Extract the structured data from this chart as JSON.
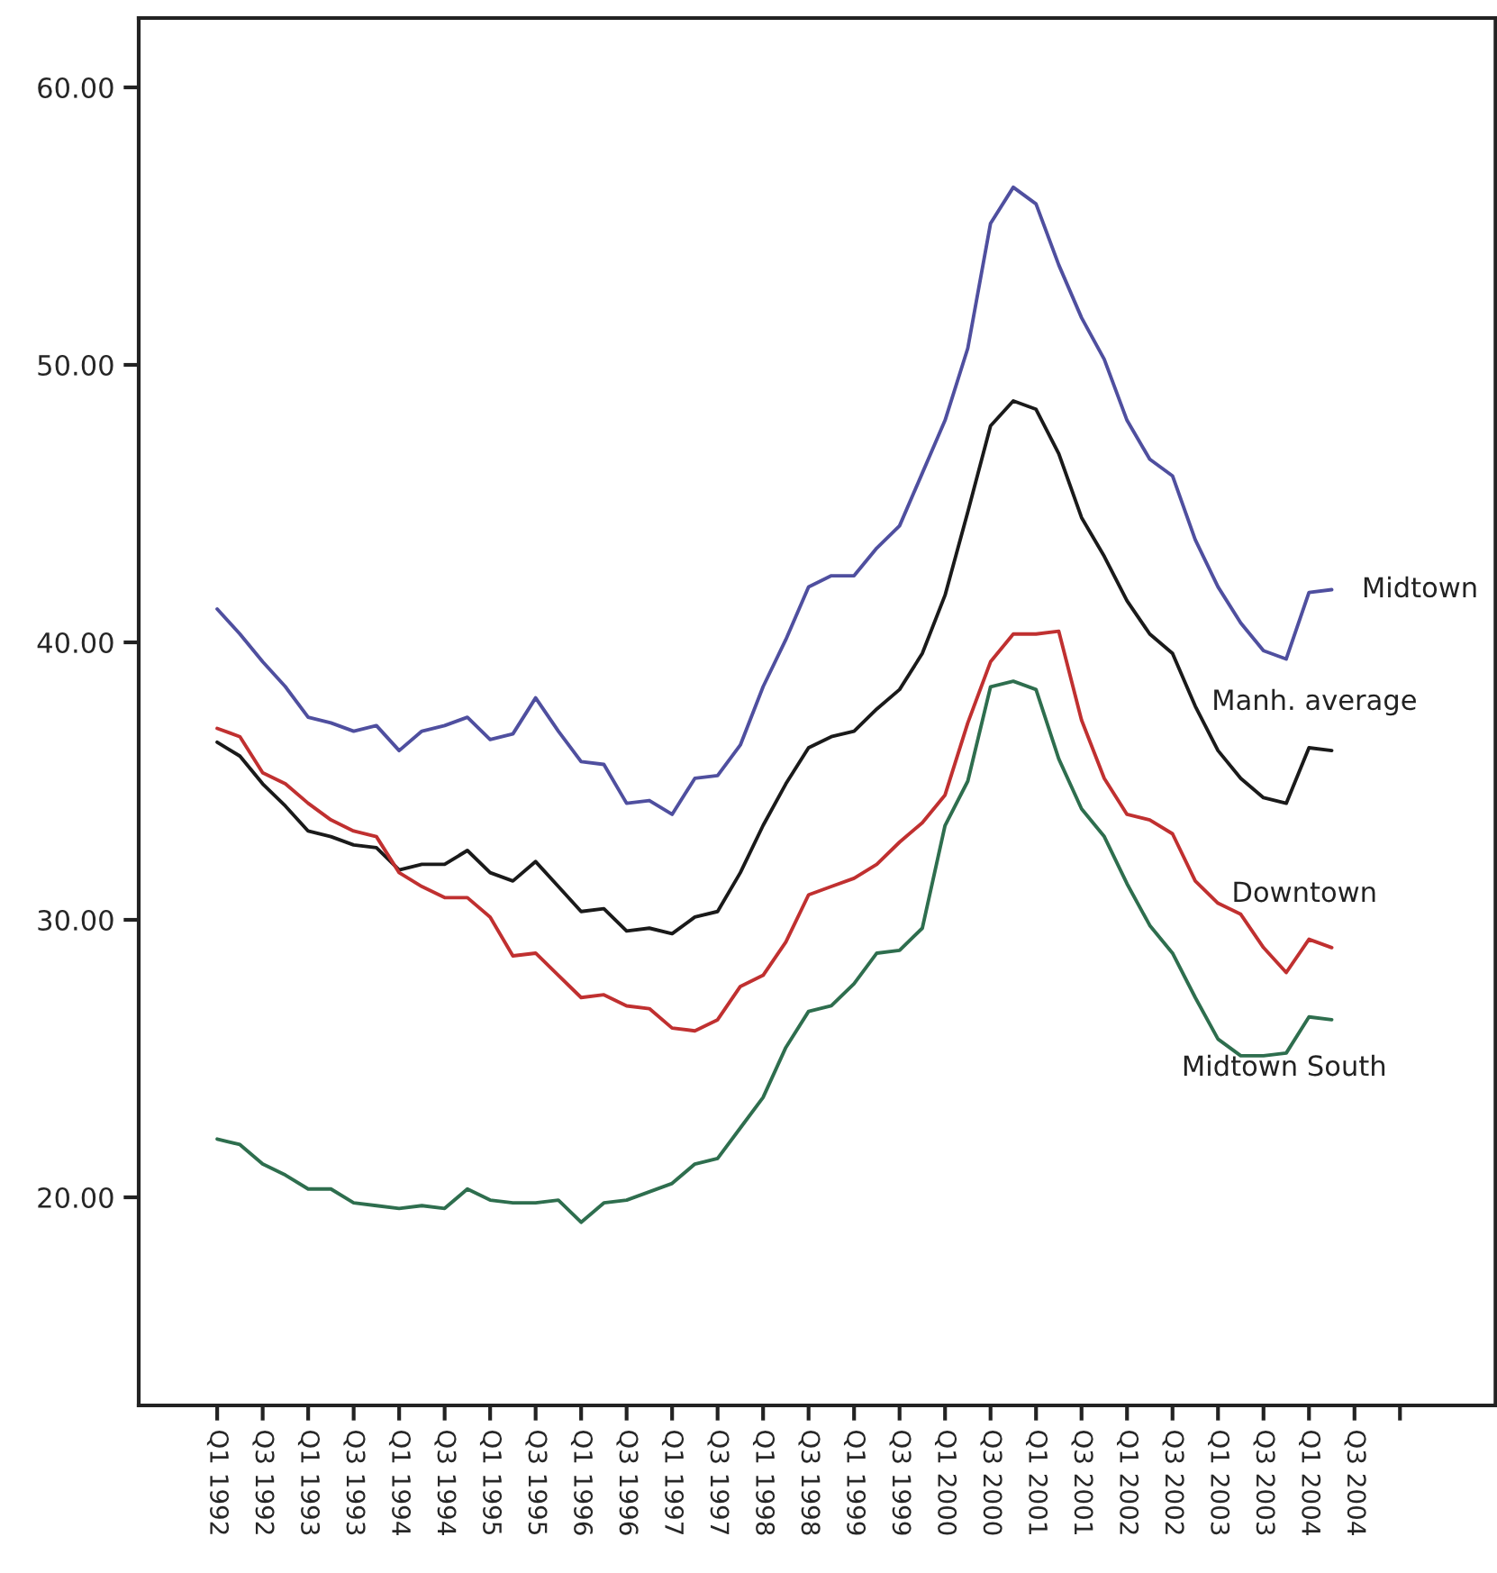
{
  "chart_data": {
    "type": "line",
    "categories": [
      "Q1 1992",
      null,
      "Q3 1992",
      null,
      "Q1 1993",
      null,
      "Q3 1993",
      null,
      "Q1 1994",
      null,
      "Q3 1994",
      null,
      "Q1 1995",
      null,
      "Q3 1995",
      null,
      "Q1 1996",
      null,
      "Q3 1996",
      null,
      "Q1 1997",
      null,
      "Q3 1997",
      null,
      "Q1 1998",
      null,
      "Q3 1998",
      null,
      "Q1 1999",
      null,
      "Q3 1999",
      null,
      "Q1 2000",
      null,
      "Q3 2000",
      null,
      "Q1 2001",
      null,
      "Q3 2001",
      null,
      "Q1 2002",
      null,
      "Q3 2002",
      null,
      "Q1 2003",
      null,
      "Q3 2003",
      null,
      "Q1 2004",
      null,
      "Q3 2004",
      null,
      null
    ],
    "series": [
      {
        "name": "Midtown",
        "color": "#4f4f9f",
        "values": [
          41.2,
          40.3,
          39.3,
          38.4,
          37.3,
          37.1,
          36.8,
          37.0,
          36.1,
          36.8,
          37.0,
          37.3,
          36.5,
          36.7,
          38.0,
          36.8,
          35.7,
          35.6,
          34.2,
          34.3,
          33.8,
          35.1,
          35.2,
          36.3,
          38.4,
          40.1,
          42.0,
          42.4,
          42.4,
          43.4,
          44.2,
          46.1,
          48.0,
          50.6,
          55.1,
          56.4,
          55.8,
          53.6,
          51.7,
          50.2,
          48.0,
          46.6,
          46.0,
          43.7,
          42.0,
          40.7,
          39.7,
          39.4,
          41.8,
          41.9,
          null,
          null,
          null
        ]
      },
      {
        "name": "Manh. average",
        "color": "#1a1a1a",
        "values": [
          36.4,
          35.9,
          34.9,
          34.1,
          33.2,
          33.0,
          32.7,
          32.6,
          31.8,
          32.0,
          32.0,
          32.5,
          31.7,
          31.4,
          32.1,
          31.2,
          30.3,
          30.4,
          29.6,
          29.7,
          29.5,
          30.1,
          30.3,
          31.7,
          33.4,
          34.9,
          36.2,
          36.6,
          36.8,
          37.6,
          38.3,
          39.6,
          41.7,
          44.7,
          47.8,
          48.7,
          48.4,
          46.8,
          44.5,
          43.1,
          41.5,
          40.3,
          39.6,
          37.7,
          36.1,
          35.1,
          34.4,
          34.2,
          36.2,
          36.1,
          null,
          null,
          null
        ]
      },
      {
        "name": "Downtown",
        "color": "#c03030",
        "values": [
          36.9,
          36.6,
          35.3,
          34.9,
          34.2,
          33.6,
          33.2,
          33.0,
          31.7,
          31.2,
          30.8,
          30.8,
          30.1,
          28.7,
          28.8,
          28.0,
          27.2,
          27.3,
          26.9,
          26.8,
          26.1,
          26.0,
          26.4,
          27.6,
          28.0,
          29.2,
          30.9,
          31.2,
          31.5,
          32.0,
          32.8,
          33.5,
          34.5,
          37.1,
          39.3,
          40.3,
          40.3,
          40.4,
          37.2,
          35.1,
          33.8,
          33.6,
          33.1,
          31.4,
          30.6,
          30.2,
          29.0,
          28.1,
          29.3,
          29.0,
          null,
          null,
          null
        ]
      },
      {
        "name": "Midtown South",
        "color": "#2e6e4e",
        "values": [
          22.1,
          21.9,
          21.2,
          20.8,
          20.3,
          20.3,
          19.8,
          19.7,
          19.6,
          19.7,
          19.6,
          20.3,
          19.9,
          19.8,
          19.8,
          19.9,
          19.1,
          19.8,
          19.9,
          20.2,
          20.5,
          21.2,
          21.4,
          22.5,
          23.6,
          25.4,
          26.7,
          26.9,
          27.7,
          28.8,
          28.9,
          29.7,
          33.4,
          35.0,
          38.4,
          38.6,
          38.3,
          35.8,
          34.0,
          33.0,
          31.3,
          29.8,
          28.8,
          27.2,
          25.7,
          25.1,
          25.1,
          25.2,
          26.5,
          26.4,
          null,
          null,
          null
        ]
      }
    ],
    "ylim": [
      12.5,
      62.5
    ],
    "yticks": [
      {
        "value": 20,
        "label": "20.00"
      },
      {
        "value": 30,
        "label": "30.00"
      },
      {
        "value": 40,
        "label": "40.00"
      },
      {
        "value": 50,
        "label": "50.00"
      },
      {
        "value": 60,
        "label": "60.00"
      }
    ],
    "grid": false,
    "legend": false,
    "marker": "none",
    "line_style": "solid"
  }
}
